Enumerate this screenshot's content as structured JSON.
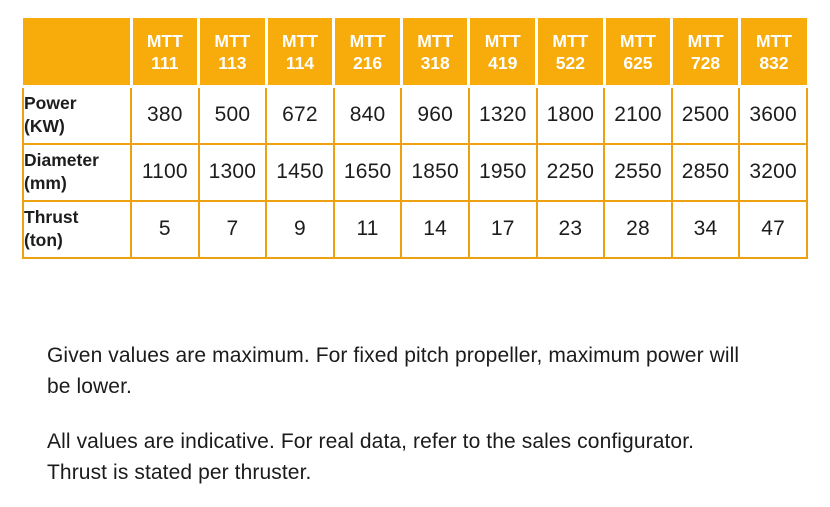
{
  "table": {
    "columns": [
      {
        "brand": "MTT",
        "model": "111"
      },
      {
        "brand": "MTT",
        "model": "113"
      },
      {
        "brand": "MTT",
        "model": "114"
      },
      {
        "brand": "MTT",
        "model": "216"
      },
      {
        "brand": "MTT",
        "model": "318"
      },
      {
        "brand": "MTT",
        "model": "419"
      },
      {
        "brand": "MTT",
        "model": "522"
      },
      {
        "brand": "MTT",
        "model": "625"
      },
      {
        "brand": "MTT",
        "model": "728"
      },
      {
        "brand": "MTT",
        "model": "832"
      }
    ],
    "rows": [
      {
        "label_line1": "Power",
        "label_line2": "(KW)",
        "values": [
          "380",
          "500",
          "672",
          "840",
          "960",
          "1320",
          "1800",
          "2100",
          "2500",
          "3600"
        ]
      },
      {
        "label_line1": "Diameter",
        "label_line2": "(mm)",
        "values": [
          "1100",
          "1300",
          "1450",
          "1650",
          "1850",
          "1950",
          "2250",
          "2550",
          "2850",
          "3200"
        ]
      },
      {
        "label_line1": "Thrust",
        "label_line2": "(ton)",
        "values": [
          "5",
          "7",
          "9",
          "11",
          "14",
          "17",
          "23",
          "28",
          "34",
          "47"
        ]
      }
    ]
  },
  "notes": {
    "note1_line1": "Given values are maximum. For fixed pitch propeller, maximum power will",
    "note1_line2": "be lower.",
    "note2_line1": "All values are indicative. For real data, refer to the sales configurator.",
    "note2_line2": "Thrust is stated per thruster."
  },
  "colors": {
    "header_orange": "#f7ac0b",
    "grid_orange": "#eda011",
    "header_text": "#ffffff",
    "body_text": "#1d1d1d",
    "background": "#ffffff"
  },
  "chart_data": {
    "type": "table",
    "categories": [
      "MTT 111",
      "MTT 113",
      "MTT 114",
      "MTT 216",
      "MTT 318",
      "MTT 419",
      "MTT 522",
      "MTT 625",
      "MTT 728",
      "MTT 832"
    ],
    "series": [
      {
        "name": "Power (KW)",
        "values": [
          380,
          500,
          672,
          840,
          960,
          1320,
          1800,
          2100,
          2500,
          3600
        ]
      },
      {
        "name": "Diameter (mm)",
        "values": [
          1100,
          1300,
          1450,
          1650,
          1850,
          1950,
          2250,
          2550,
          2850,
          3200
        ]
      },
      {
        "name": "Thrust (ton)",
        "values": [
          5,
          7,
          9,
          11,
          14,
          17,
          23,
          28,
          34,
          47
        ]
      }
    ]
  }
}
